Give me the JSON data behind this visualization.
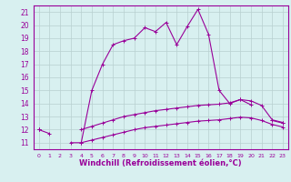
{
  "x": [
    0,
    1,
    2,
    3,
    4,
    5,
    6,
    7,
    8,
    9,
    10,
    11,
    12,
    13,
    14,
    15,
    16,
    17,
    18,
    19,
    20,
    21,
    22,
    23
  ],
  "upper": [
    12.0,
    11.7,
    null,
    11.0,
    11.0,
    15.0,
    17.0,
    18.5,
    18.8,
    19.0,
    19.8,
    19.5,
    20.2,
    18.5,
    19.9,
    21.2,
    19.3,
    15.0,
    14.0,
    14.3,
    13.9,
    null,
    12.7,
    12.5
  ],
  "mid": [
    12.0,
    null,
    null,
    null,
    12.0,
    12.25,
    12.5,
    12.75,
    13.0,
    13.15,
    13.3,
    13.45,
    13.55,
    13.65,
    13.75,
    13.85,
    13.9,
    13.95,
    14.05,
    14.3,
    14.2,
    13.85,
    12.75,
    12.55
  ],
  "low": [
    12.0,
    null,
    null,
    null,
    11.0,
    11.2,
    11.4,
    11.6,
    11.8,
    12.0,
    12.15,
    12.25,
    12.35,
    12.45,
    12.55,
    12.65,
    12.7,
    12.75,
    12.85,
    12.95,
    12.9,
    12.7,
    12.4,
    12.2
  ],
  "color": "#990099",
  "bg_color": "#d8f0f0",
  "grid_color": "#b8d0d0",
  "xlabel": "Windchill (Refroidissement éolien,°C)",
  "xlim": [
    -0.5,
    23.5
  ],
  "ylim": [
    10.5,
    21.5
  ],
  "xticks": [
    0,
    1,
    2,
    3,
    4,
    5,
    6,
    7,
    8,
    9,
    10,
    11,
    12,
    13,
    14,
    15,
    16,
    17,
    18,
    19,
    20,
    21,
    22,
    23
  ],
  "yticks": [
    11,
    12,
    13,
    14,
    15,
    16,
    17,
    18,
    19,
    20,
    21
  ]
}
